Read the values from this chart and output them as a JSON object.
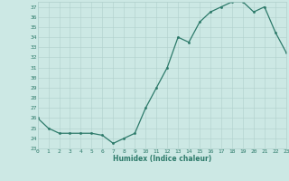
{
  "x": [
    0,
    1,
    2,
    3,
    4,
    5,
    6,
    7,
    8,
    9,
    10,
    11,
    12,
    13,
    14,
    15,
    16,
    17,
    18,
    19,
    20,
    21,
    22,
    23
  ],
  "y": [
    26,
    25,
    24.5,
    24.5,
    24.5,
    24.5,
    24.3,
    23.5,
    24,
    24.5,
    27,
    29,
    31,
    34,
    33.5,
    35.5,
    36.5,
    37,
    37.5,
    37.5,
    36.5,
    37,
    34.5,
    32.5
  ],
  "xlabel": "Humidex (Indice chaleur)",
  "ylim": [
    23,
    37.5
  ],
  "xlim": [
    0,
    23
  ],
  "yticks": [
    23,
    24,
    25,
    26,
    27,
    28,
    29,
    30,
    31,
    32,
    33,
    34,
    35,
    36,
    37
  ],
  "xticks": [
    0,
    1,
    2,
    3,
    4,
    5,
    6,
    7,
    8,
    9,
    10,
    11,
    12,
    13,
    14,
    15,
    16,
    17,
    18,
    19,
    20,
    21,
    22,
    23
  ],
  "line_color": "#2d7a6a",
  "marker_color": "#2d7a6a",
  "bg_color": "#cce8e4",
  "grid_color": "#b0d0cc",
  "label_color": "#2d7a6a"
}
